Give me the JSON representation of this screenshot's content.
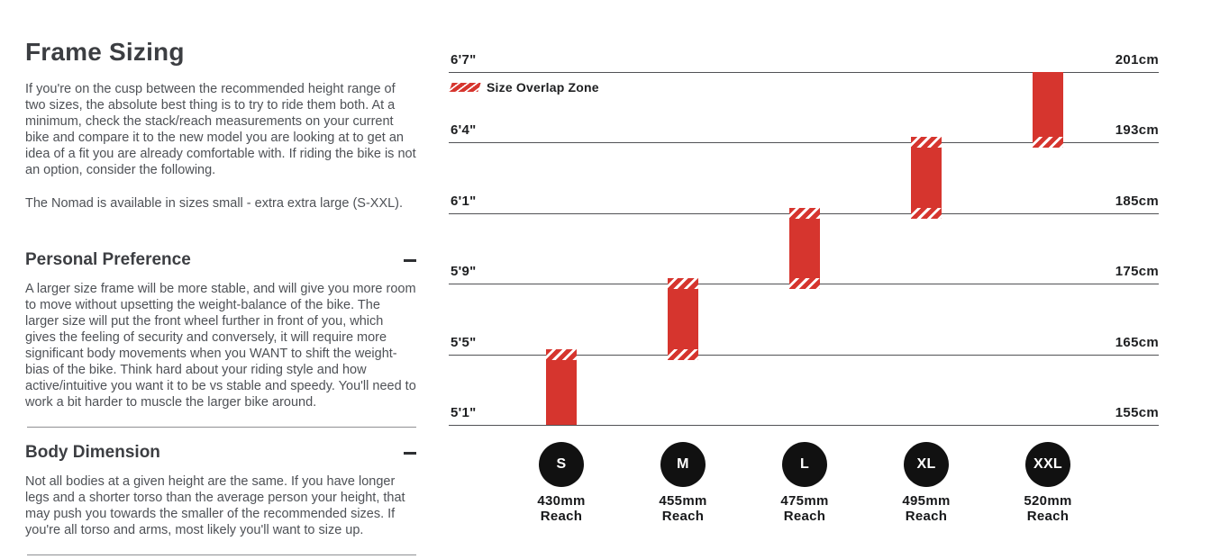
{
  "article": {
    "title": "Frame Sizing",
    "intro": "If you're on the cusp between the recommended height range of two sizes, the absolute best thing is to try to ride them both. At a minimum, check the stack/reach measurements on your current bike and compare it to the new model you are looking at to get an idea of a fit you are already comfortable with. If riding the bike is not an option, consider the following.",
    "availability": "The Nomad is available in sizes small - extra extra large (S-XXL).",
    "sections": [
      {
        "title": "Personal Preference",
        "collapse_icon": "minus-icon",
        "body": "A larger size frame will be more stable, and will give you more room to move without upsetting the weight-balance of the bike. The larger size will put the front wheel further in front of you, which gives the feeling of security and conversely, it will require more significant body movements when you WANT to shift the weight-bias of the bike. Think hard about your riding style and how active/intuitive you want it to be vs stable and speedy. You'll need to work a bit harder to muscle the larger bike around."
      },
      {
        "title": "Body Dimension",
        "collapse_icon": "minus-icon",
        "body": "Not all bodies at a given height are the same. If you have longer legs and a shorter torso than the average person your height, that may push you towards the smaller of the recommended sizes. If you're all torso and arms, most likely you'll want to size up."
      }
    ]
  },
  "chart_data": {
    "type": "bar",
    "subtype": "vertical-range-bars-rider-height",
    "legend": {
      "label": "Size Overlap Zone",
      "swatch": "red-diagonal-hatch"
    },
    "colors": {
      "bar_red": "#d6352e",
      "hatch_gap": "#ffffff",
      "circle_black": "#111111",
      "gridline": "#515255"
    },
    "axis": {
      "unit_left": "feet/inches",
      "unit_right": "cm",
      "ticks": [
        {
          "imperial": "6'7\"",
          "metric": "201cm",
          "cm": 201
        },
        {
          "imperial": "6'4\"",
          "metric": "193cm",
          "cm": 193
        },
        {
          "imperial": "6'1\"",
          "metric": "185cm",
          "cm": 185
        },
        {
          "imperial": "5'9\"",
          "metric": "175cm",
          "cm": 175
        },
        {
          "imperial": "5'5\"",
          "metric": "165cm",
          "cm": 165
        },
        {
          "imperial": "5'1\"",
          "metric": "155cm",
          "cm": 155
        }
      ]
    },
    "sizes": [
      {
        "label": "S",
        "reach": "430mm",
        "reach_caption": "Reach",
        "span_ticks": [
          4,
          5
        ],
        "overlap_top": true,
        "overlap_bottom": false,
        "height_range_cm": [
          155,
          166
        ]
      },
      {
        "label": "M",
        "reach": "455mm",
        "reach_caption": "Reach",
        "span_ticks": [
          3,
          4
        ],
        "overlap_top": true,
        "overlap_bottom": true,
        "height_range_cm": [
          164,
          176
        ]
      },
      {
        "label": "L",
        "reach": "475mm",
        "reach_caption": "Reach",
        "span_ticks": [
          2,
          3
        ],
        "overlap_top": true,
        "overlap_bottom": true,
        "height_range_cm": [
          174,
          186
        ]
      },
      {
        "label": "XL",
        "reach": "495mm",
        "reach_caption": "Reach",
        "span_ticks": [
          1,
          2
        ],
        "overlap_top": true,
        "overlap_bottom": true,
        "height_range_cm": [
          184,
          194
        ]
      },
      {
        "label": "XXL",
        "reach": "520mm",
        "reach_caption": "Reach",
        "span_ticks": [
          0,
          1
        ],
        "overlap_top": false,
        "overlap_bottom": true,
        "height_range_cm": [
          192,
          201
        ]
      }
    ]
  }
}
